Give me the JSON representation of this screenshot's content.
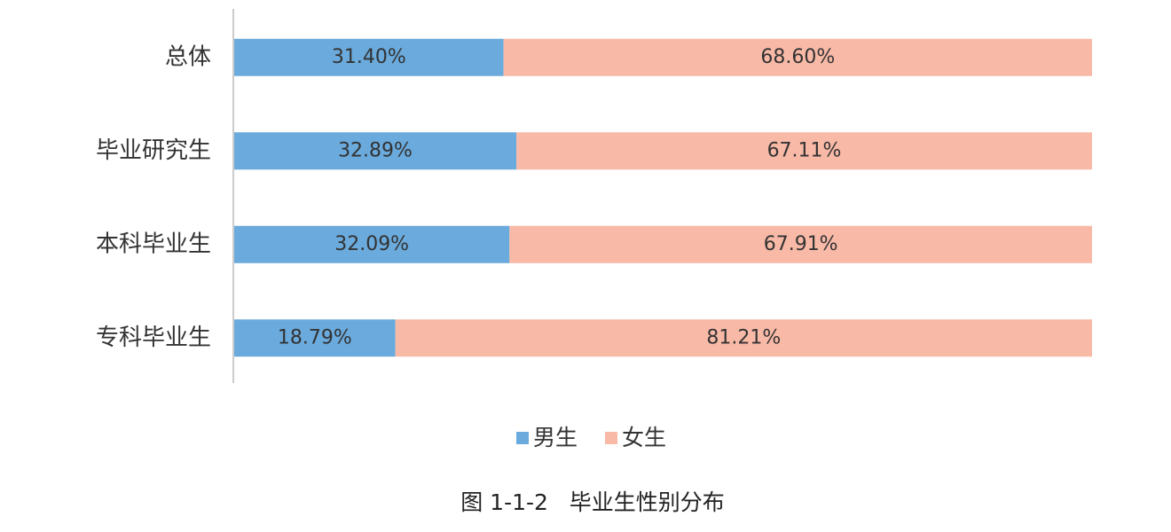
{
  "chart_data": {
    "type": "stacked-barh",
    "categories": [
      "总体",
      "毕业研究生",
      "本科毕业生",
      "专科毕业生"
    ],
    "series": [
      {
        "name": "男生",
        "color": "#6aaadc",
        "values": [
          31.4,
          32.89,
          32.09,
          18.79
        ],
        "value_labels": [
          "31.40%",
          "32.89%",
          "32.09%",
          "18.79%"
        ]
      },
      {
        "name": "女生",
        "color": "#f8b9a7",
        "values": [
          68.6,
          67.11,
          67.91,
          81.21
        ],
        "value_labels": [
          "68.60%",
          "67.11%",
          "67.91%",
          "81.21%"
        ]
      }
    ],
    "xlim": [
      0,
      100
    ],
    "caption": "图 1-1-2   毕业生性别分布"
  }
}
